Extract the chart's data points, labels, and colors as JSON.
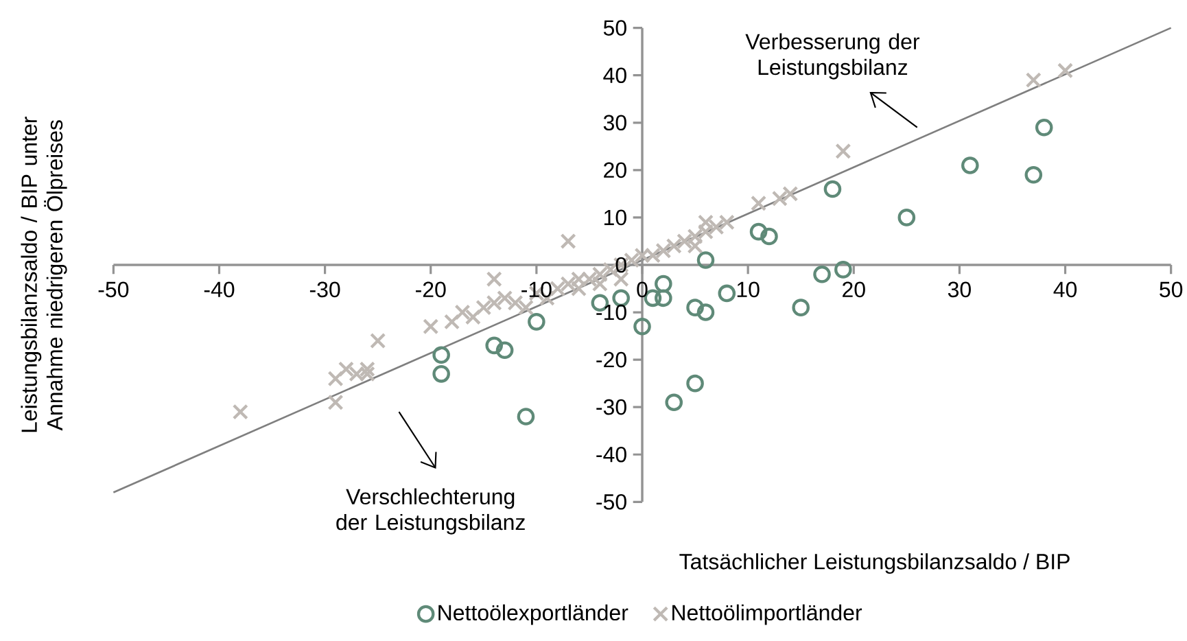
{
  "chart_data": {
    "type": "scatter",
    "xlabel": "Tatsächlicher Leistungsbilanzsaldo / BIP",
    "ylabel": "Leistungsbilanzsaldo / BIP unter Annahme niedrigeren Ölpreises",
    "xlim": [
      -50,
      50
    ],
    "ylim": [
      -50,
      50
    ],
    "xticks": [
      -50,
      -40,
      -30,
      -20,
      -10,
      0,
      10,
      20,
      30,
      40,
      50
    ],
    "yticks": [
      -50,
      -40,
      -30,
      -20,
      -10,
      0,
      10,
      20,
      30,
      40,
      50
    ],
    "legend": "bottom",
    "grid": false,
    "annotations": [
      "Verbesserung der Leistungsbilanz",
      "Verschlechterung der Leistungsbilanz"
    ],
    "series": [
      {
        "type": "line",
        "color": "#7f7f7f",
        "x": [
          -50,
          50
        ],
        "values": [
          -48,
          50
        ],
        "marker": "none"
      },
      {
        "name": "Nettoölexportländer",
        "color": "#5f8a78",
        "marker": "circle",
        "x": [
          -19,
          -19,
          -14,
          -13,
          -10,
          -11,
          -4,
          -2,
          0,
          1,
          2,
          2,
          5,
          6,
          8,
          6,
          3,
          5,
          11,
          12,
          18,
          25,
          31,
          38,
          37,
          17,
          19,
          15
        ],
        "values": [
          -23,
          -19,
          -17,
          -18,
          -12,
          -32,
          -8,
          -7,
          -13,
          -7,
          -4,
          -7,
          -9,
          -10,
          -6,
          1,
          -29,
          -25,
          7,
          6,
          16,
          10,
          21,
          29,
          19,
          -2,
          -1,
          -9
        ]
      },
      {
        "name": "Nettoölimportländer",
        "color": "#bfb9b4",
        "marker": "cross",
        "x": [
          -38,
          -29,
          -29,
          -28,
          -27,
          -26,
          -26,
          -25,
          -20,
          -18,
          -17,
          -16,
          -15,
          -14,
          -14,
          -13,
          -12,
          -11,
          -10,
          -9,
          -8,
          -7,
          -7,
          -6,
          -6,
          -5,
          -4,
          -4,
          -3,
          -2,
          -2,
          -1,
          0,
          1,
          2,
          3,
          4,
          5,
          5,
          6,
          6,
          7,
          8,
          11,
          13,
          14,
          19,
          37,
          40
        ],
        "values": [
          -31,
          -29,
          -24,
          -22,
          -23,
          -23,
          -22,
          -16,
          -13,
          -12,
          -10,
          -11,
          -9,
          -8,
          -3,
          -7,
          -8,
          -9,
          -6,
          -7,
          -5,
          5,
          -4,
          -5,
          -3,
          -3,
          -2,
          -4,
          -1,
          0,
          -3,
          1,
          2,
          2,
          3,
          4,
          5,
          4,
          6,
          7,
          9,
          8,
          9,
          13,
          14,
          15,
          24,
          39,
          41
        ]
      }
    ]
  }
}
